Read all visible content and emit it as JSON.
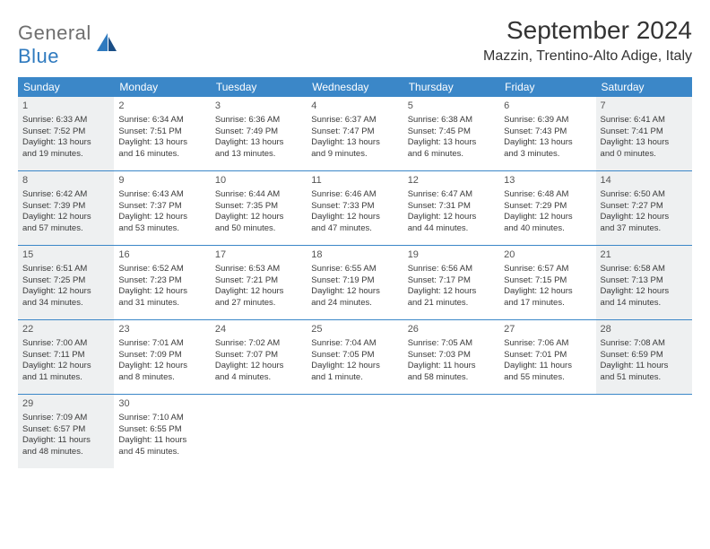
{
  "logo": {
    "text1": "General",
    "text2": "Blue"
  },
  "title": "September 2024",
  "location": "Mazzin, Trentino-Alto Adige, Italy",
  "colors": {
    "header_blue": "#3b87c8",
    "shade": "#eef0f1",
    "logo_gray": "#6f6f6f",
    "logo_blue": "#2f7abf"
  },
  "dow": [
    "Sunday",
    "Monday",
    "Tuesday",
    "Wednesday",
    "Thursday",
    "Friday",
    "Saturday"
  ],
  "weeks": [
    [
      {
        "n": "1",
        "shade": true,
        "sr": "Sunrise: 6:33 AM",
        "ss": "Sunset: 7:52 PM",
        "d1": "Daylight: 13 hours",
        "d2": "and 19 minutes."
      },
      {
        "n": "2",
        "shade": false,
        "sr": "Sunrise: 6:34 AM",
        "ss": "Sunset: 7:51 PM",
        "d1": "Daylight: 13 hours",
        "d2": "and 16 minutes."
      },
      {
        "n": "3",
        "shade": false,
        "sr": "Sunrise: 6:36 AM",
        "ss": "Sunset: 7:49 PM",
        "d1": "Daylight: 13 hours",
        "d2": "and 13 minutes."
      },
      {
        "n": "4",
        "shade": false,
        "sr": "Sunrise: 6:37 AM",
        "ss": "Sunset: 7:47 PM",
        "d1": "Daylight: 13 hours",
        "d2": "and 9 minutes."
      },
      {
        "n": "5",
        "shade": false,
        "sr": "Sunrise: 6:38 AM",
        "ss": "Sunset: 7:45 PM",
        "d1": "Daylight: 13 hours",
        "d2": "and 6 minutes."
      },
      {
        "n": "6",
        "shade": false,
        "sr": "Sunrise: 6:39 AM",
        "ss": "Sunset: 7:43 PM",
        "d1": "Daylight: 13 hours",
        "d2": "and 3 minutes."
      },
      {
        "n": "7",
        "shade": true,
        "sr": "Sunrise: 6:41 AM",
        "ss": "Sunset: 7:41 PM",
        "d1": "Daylight: 13 hours",
        "d2": "and 0 minutes."
      }
    ],
    [
      {
        "n": "8",
        "shade": true,
        "sr": "Sunrise: 6:42 AM",
        "ss": "Sunset: 7:39 PM",
        "d1": "Daylight: 12 hours",
        "d2": "and 57 minutes."
      },
      {
        "n": "9",
        "shade": false,
        "sr": "Sunrise: 6:43 AM",
        "ss": "Sunset: 7:37 PM",
        "d1": "Daylight: 12 hours",
        "d2": "and 53 minutes."
      },
      {
        "n": "10",
        "shade": false,
        "sr": "Sunrise: 6:44 AM",
        "ss": "Sunset: 7:35 PM",
        "d1": "Daylight: 12 hours",
        "d2": "and 50 minutes."
      },
      {
        "n": "11",
        "shade": false,
        "sr": "Sunrise: 6:46 AM",
        "ss": "Sunset: 7:33 PM",
        "d1": "Daylight: 12 hours",
        "d2": "and 47 minutes."
      },
      {
        "n": "12",
        "shade": false,
        "sr": "Sunrise: 6:47 AM",
        "ss": "Sunset: 7:31 PM",
        "d1": "Daylight: 12 hours",
        "d2": "and 44 minutes."
      },
      {
        "n": "13",
        "shade": false,
        "sr": "Sunrise: 6:48 AM",
        "ss": "Sunset: 7:29 PM",
        "d1": "Daylight: 12 hours",
        "d2": "and 40 minutes."
      },
      {
        "n": "14",
        "shade": true,
        "sr": "Sunrise: 6:50 AM",
        "ss": "Sunset: 7:27 PM",
        "d1": "Daylight: 12 hours",
        "d2": "and 37 minutes."
      }
    ],
    [
      {
        "n": "15",
        "shade": true,
        "sr": "Sunrise: 6:51 AM",
        "ss": "Sunset: 7:25 PM",
        "d1": "Daylight: 12 hours",
        "d2": "and 34 minutes."
      },
      {
        "n": "16",
        "shade": false,
        "sr": "Sunrise: 6:52 AM",
        "ss": "Sunset: 7:23 PM",
        "d1": "Daylight: 12 hours",
        "d2": "and 31 minutes."
      },
      {
        "n": "17",
        "shade": false,
        "sr": "Sunrise: 6:53 AM",
        "ss": "Sunset: 7:21 PM",
        "d1": "Daylight: 12 hours",
        "d2": "and 27 minutes."
      },
      {
        "n": "18",
        "shade": false,
        "sr": "Sunrise: 6:55 AM",
        "ss": "Sunset: 7:19 PM",
        "d1": "Daylight: 12 hours",
        "d2": "and 24 minutes."
      },
      {
        "n": "19",
        "shade": false,
        "sr": "Sunrise: 6:56 AM",
        "ss": "Sunset: 7:17 PM",
        "d1": "Daylight: 12 hours",
        "d2": "and 21 minutes."
      },
      {
        "n": "20",
        "shade": false,
        "sr": "Sunrise: 6:57 AM",
        "ss": "Sunset: 7:15 PM",
        "d1": "Daylight: 12 hours",
        "d2": "and 17 minutes."
      },
      {
        "n": "21",
        "shade": true,
        "sr": "Sunrise: 6:58 AM",
        "ss": "Sunset: 7:13 PM",
        "d1": "Daylight: 12 hours",
        "d2": "and 14 minutes."
      }
    ],
    [
      {
        "n": "22",
        "shade": true,
        "sr": "Sunrise: 7:00 AM",
        "ss": "Sunset: 7:11 PM",
        "d1": "Daylight: 12 hours",
        "d2": "and 11 minutes."
      },
      {
        "n": "23",
        "shade": false,
        "sr": "Sunrise: 7:01 AM",
        "ss": "Sunset: 7:09 PM",
        "d1": "Daylight: 12 hours",
        "d2": "and 8 minutes."
      },
      {
        "n": "24",
        "shade": false,
        "sr": "Sunrise: 7:02 AM",
        "ss": "Sunset: 7:07 PM",
        "d1": "Daylight: 12 hours",
        "d2": "and 4 minutes."
      },
      {
        "n": "25",
        "shade": false,
        "sr": "Sunrise: 7:04 AM",
        "ss": "Sunset: 7:05 PM",
        "d1": "Daylight: 12 hours",
        "d2": "and 1 minute."
      },
      {
        "n": "26",
        "shade": false,
        "sr": "Sunrise: 7:05 AM",
        "ss": "Sunset: 7:03 PM",
        "d1": "Daylight: 11 hours",
        "d2": "and 58 minutes."
      },
      {
        "n": "27",
        "shade": false,
        "sr": "Sunrise: 7:06 AM",
        "ss": "Sunset: 7:01 PM",
        "d1": "Daylight: 11 hours",
        "d2": "and 55 minutes."
      },
      {
        "n": "28",
        "shade": true,
        "sr": "Sunrise: 7:08 AM",
        "ss": "Sunset: 6:59 PM",
        "d1": "Daylight: 11 hours",
        "d2": "and 51 minutes."
      }
    ],
    [
      {
        "n": "29",
        "shade": true,
        "sr": "Sunrise: 7:09 AM",
        "ss": "Sunset: 6:57 PM",
        "d1": "Daylight: 11 hours",
        "d2": "and 48 minutes."
      },
      {
        "n": "30",
        "shade": false,
        "sr": "Sunrise: 7:10 AM",
        "ss": "Sunset: 6:55 PM",
        "d1": "Daylight: 11 hours",
        "d2": "and 45 minutes."
      },
      {
        "empty": true
      },
      {
        "empty": true
      },
      {
        "empty": true
      },
      {
        "empty": true
      },
      {
        "empty": true
      }
    ]
  ]
}
